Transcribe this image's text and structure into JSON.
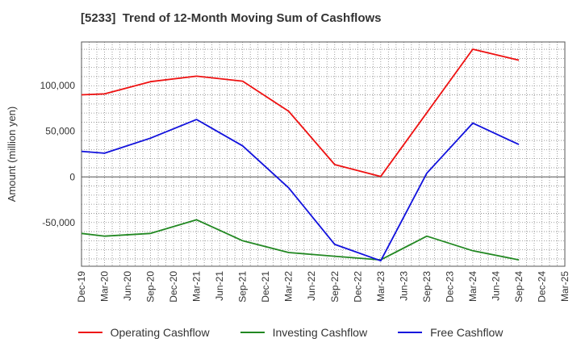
{
  "chart_data": {
    "type": "line",
    "title": "[5233]  Trend of 12-Month Moving Sum of Cashflows",
    "ylabel": "Amount (million yen)",
    "xlabel": "",
    "categories": [
      "Dec-19",
      "Mar-20",
      "Jun-20",
      "Sep-20",
      "Dec-20",
      "Mar-21",
      "Jun-21",
      "Sep-21",
      "Dec-21",
      "Mar-22",
      "Jun-22",
      "Sep-22",
      "Dec-22",
      "Mar-23",
      "Jun-23",
      "Sep-23",
      "Dec-23",
      "Mar-24",
      "Jun-24",
      "Sep-24",
      "Dec-24",
      "Mar-25"
    ],
    "yticks": [
      -50000,
      0,
      50000,
      100000
    ],
    "ytick_labels": [
      "-50,000",
      "0",
      "50,000",
      "100,000"
    ],
    "ylim": [
      -98000,
      148000
    ],
    "grid": true,
    "legend_position": "bottom",
    "series": [
      {
        "name": "Operating Cashflow",
        "color": "#ee1111",
        "values": [
          90000,
          91000,
          null,
          104500,
          null,
          110500,
          null,
          105000,
          null,
          72000,
          null,
          13500,
          null,
          500,
          null,
          null,
          null,
          140000,
          null,
          128000,
          null,
          null
        ]
      },
      {
        "name": "Investing Cashflow",
        "color": "#228822",
        "values": [
          -62000,
          -65000,
          null,
          -62000,
          null,
          -47000,
          null,
          -70000,
          null,
          -83000,
          null,
          -87000,
          null,
          -91000,
          null,
          -65000,
          null,
          -81000,
          null,
          -91000,
          null,
          null
        ]
      },
      {
        "name": "Free Cashflow",
        "color": "#1111dd",
        "values": [
          28000,
          26000,
          null,
          42500,
          null,
          63000,
          null,
          34000,
          null,
          -12000,
          null,
          -74000,
          null,
          -92000,
          null,
          4000,
          null,
          59000,
          null,
          35500,
          null,
          null
        ]
      }
    ]
  }
}
